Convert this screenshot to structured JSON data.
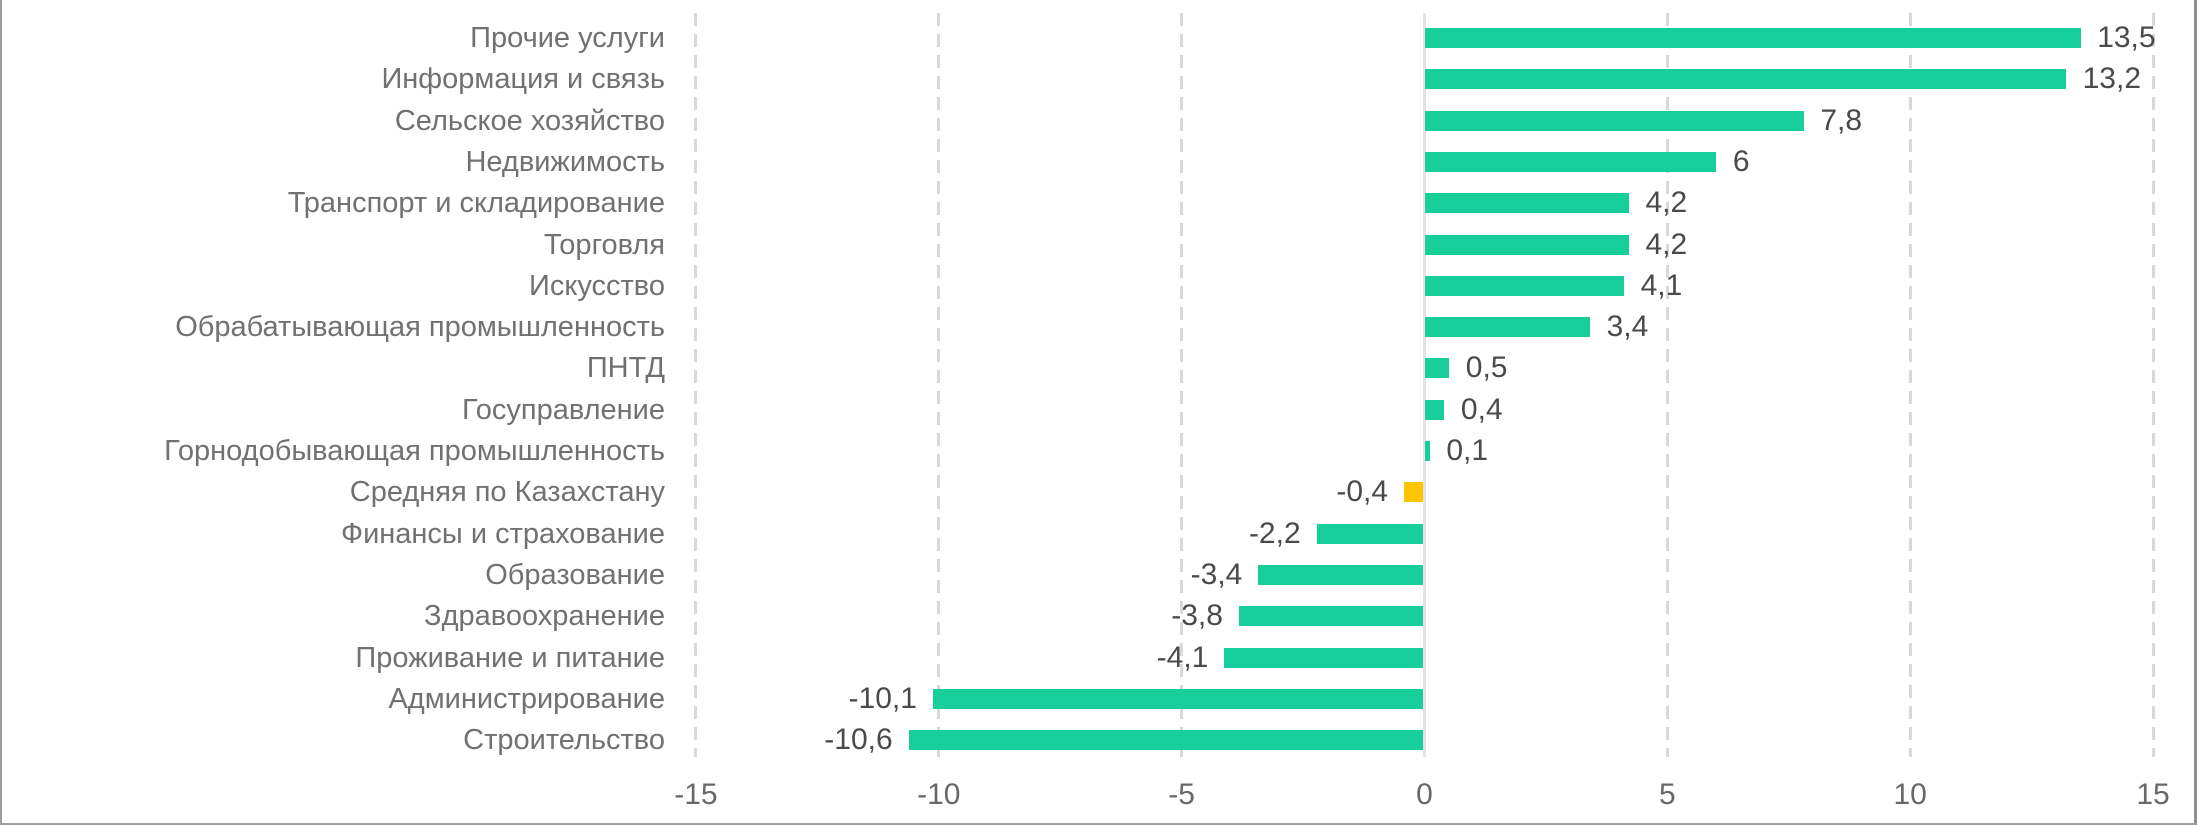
{
  "chart_data": {
    "type": "bar",
    "orientation": "horizontal",
    "title": "",
    "xlabel": "",
    "ylabel": "",
    "xlim": [
      -15,
      15
    ],
    "x_ticks": [
      {
        "value": -15,
        "label": "-15"
      },
      {
        "value": -10,
        "label": "-10"
      },
      {
        "value": -5,
        "label": "-5"
      },
      {
        "value": 0,
        "label": "0"
      },
      {
        "value": 5,
        "label": "5"
      },
      {
        "value": 10,
        "label": "10"
      },
      {
        "value": 15,
        "label": "15"
      }
    ],
    "grid": "vertical-dashed",
    "legend": "none",
    "bars": [
      {
        "category": "Прочие услуги",
        "value": 13.5,
        "label": "13,5",
        "highlight": false
      },
      {
        "category": "Информация и связь",
        "value": 13.2,
        "label": "13,2",
        "highlight": false
      },
      {
        "category": "Сельское хозяйство",
        "value": 7.8,
        "label": "7,8",
        "highlight": false
      },
      {
        "category": "Недвижимость",
        "value": 6,
        "label": "6",
        "highlight": false
      },
      {
        "category": "Транспорт и складирование",
        "value": 4.2,
        "label": "4,2",
        "highlight": false
      },
      {
        "category": "Торговля",
        "value": 4.2,
        "label": "4,2",
        "highlight": false
      },
      {
        "category": "Искусство",
        "value": 4.1,
        "label": "4,1",
        "highlight": false
      },
      {
        "category": "Обрабатывающая промышленность",
        "value": 3.4,
        "label": "3,4",
        "highlight": false
      },
      {
        "category": "ПНТД",
        "value": 0.5,
        "label": "0,5",
        "highlight": false
      },
      {
        "category": "Госуправление",
        "value": 0.4,
        "label": "0,4",
        "highlight": false
      },
      {
        "category": "Горнодобывающая промышленность",
        "value": 0.1,
        "label": "0,1",
        "highlight": false
      },
      {
        "category": "Средняя по Казахстану",
        "value": -0.4,
        "label": "-0,4",
        "highlight": true
      },
      {
        "category": "Финансы и страхование",
        "value": -2.2,
        "label": "-2,2",
        "highlight": false
      },
      {
        "category": "Образование",
        "value": -3.4,
        "label": "-3,4",
        "highlight": false
      },
      {
        "category": "Здравоохранение",
        "value": -3.8,
        "label": "-3,8",
        "highlight": false
      },
      {
        "category": "Проживание и питание",
        "value": -4.1,
        "label": "-4,1",
        "highlight": false
      },
      {
        "category": "Администрирование",
        "value": -10.1,
        "label": "-10,1",
        "highlight": false
      },
      {
        "category": "Строительство",
        "value": -10.6,
        "label": "-10,6",
        "highlight": false
      }
    ],
    "colors": {
      "bar": "#18CF9B",
      "highlight_bar": "#FDC500",
      "gridline": "#D9D9D9",
      "zero_line": "#E4E4E4",
      "category_text": "#717171",
      "value_text": "#4A4A4A",
      "tick_text": "#686868",
      "frame_border": "#9E9E9E",
      "background": "#FFFFFF"
    }
  }
}
